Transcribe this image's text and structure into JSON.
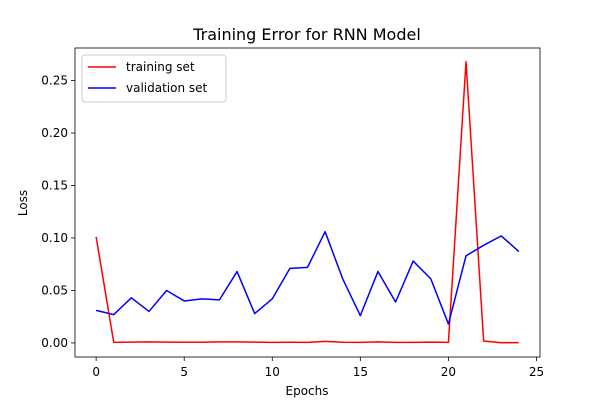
{
  "chart_data": {
    "type": "line",
    "title": "Training Error for RNN Model",
    "xlabel": "Epochs",
    "ylabel": "Loss",
    "xlim": [
      -1.2,
      25.2
    ],
    "ylim": [
      -0.0134,
      0.281
    ],
    "xticks": [
      0,
      5,
      10,
      15,
      20,
      25
    ],
    "yticks": [
      0.0,
      0.05,
      0.1,
      0.15,
      0.2,
      0.25
    ],
    "ytick_labels": [
      "0.00",
      "0.05",
      "0.10",
      "0.15",
      "0.20",
      "0.25"
    ],
    "legend_position": "top-left",
    "x": [
      0,
      1,
      2,
      3,
      4,
      5,
      6,
      7,
      8,
      9,
      10,
      11,
      12,
      13,
      14,
      15,
      16,
      17,
      18,
      19,
      20,
      21,
      22,
      23,
      24
    ],
    "series": [
      {
        "name": "training set",
        "color": "#ff0000",
        "values": [
          0.101,
          0.0005,
          0.0008,
          0.001,
          0.0008,
          0.0007,
          0.0006,
          0.001,
          0.001,
          0.0008,
          0.0005,
          0.0006,
          0.0005,
          0.0015,
          0.0007,
          0.0005,
          0.001,
          0.0005,
          0.0005,
          0.0008,
          0.0005,
          0.268,
          0.0018,
          0.0002,
          0.0003
        ]
      },
      {
        "name": "validation set",
        "color": "#0000ff",
        "values": [
          0.031,
          0.027,
          0.043,
          0.03,
          0.05,
          0.04,
          0.042,
          0.041,
          0.068,
          0.028,
          0.042,
          0.071,
          0.072,
          0.106,
          0.061,
          0.026,
          0.068,
          0.039,
          0.078,
          0.061,
          0.018,
          0.083,
          0.093,
          0.102,
          0.087
        ]
      }
    ]
  }
}
